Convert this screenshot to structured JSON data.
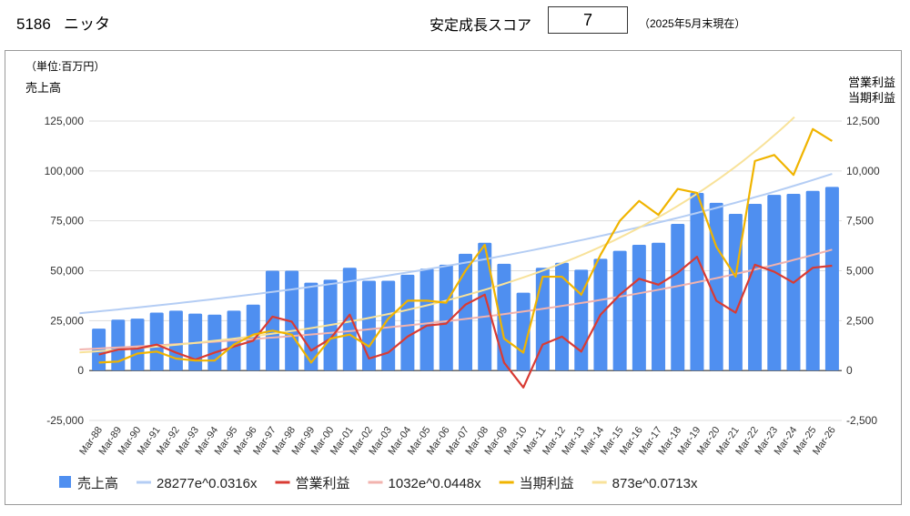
{
  "header": {
    "code": "5186",
    "name": "ニッタ",
    "score_label": "安定成長スコア",
    "score": "7",
    "as_of": "（2025年5月末現在）"
  },
  "chart_data": {
    "type": "bar",
    "unit_label": "（単位:百万円）",
    "ylabel_left": "売上高",
    "ylabel_right": [
      "営業利益",
      "当期利益"
    ],
    "ylim_left": [
      -25000,
      125000
    ],
    "ylim_right": [
      -2500,
      12500
    ],
    "yticks_left": [
      "-25,000",
      "0",
      "25,000",
      "50,000",
      "75,000",
      "100,000",
      "125,000"
    ],
    "yticks_right": [
      "-2,500",
      "0",
      "2,500",
      "5,000",
      "7,500",
      "10,000",
      "12,500"
    ],
    "grid": true,
    "legend_position": "bottom",
    "categories": [
      "Mar-88",
      "Mar-89",
      "Mar-90",
      "Mar-91",
      "Mar-92",
      "Mar-93",
      "Mar-94",
      "Mar-95",
      "Mar-96",
      "Mar-97",
      "Mar-98",
      "Mar-99",
      "Mar-00",
      "Mar-01",
      "Mar-02",
      "Mar-03",
      "Mar-04",
      "Mar-05",
      "Mar-06",
      "Mar-07",
      "Mar-08",
      "Mar-09",
      "Mar-10",
      "Mar-11",
      "Mar-12",
      "Mar-13",
      "Mar-14",
      "Mar-15",
      "Mar-16",
      "Mar-17",
      "Mar-18",
      "Mar-19",
      "Mar-20",
      "Mar-21",
      "Mar-22",
      "Mar-23",
      "Mar-24",
      "Mar-25",
      "Mar-26"
    ],
    "series": [
      {
        "name": "売上高",
        "type": "bar",
        "axis": "left",
        "color": "#4f8ff0",
        "values": [
          21000,
          25500,
          26000,
          29000,
          30000,
          28500,
          28000,
          30000,
          33000,
          50000,
          50000,
          44000,
          45500,
          51500,
          45000,
          45000,
          48000,
          51000,
          53000,
          58500,
          64000,
          53500,
          39000,
          51500,
          54000,
          50500,
          56000,
          60000,
          63000,
          64000,
          73500,
          89000,
          84000,
          78500,
          83500,
          88000,
          88500,
          90000,
          92000
        ]
      },
      {
        "name": "28277e^0.0316x",
        "type": "trend",
        "axis": "left",
        "color": "#b4cdf4",
        "a": 28277,
        "b": 0.0316
      },
      {
        "name": "営業利益",
        "type": "line",
        "axis": "right",
        "color": "#d93b33",
        "values": [
          800,
          1050,
          1100,
          1300,
          900,
          550,
          900,
          1200,
          1500,
          2700,
          2450,
          1000,
          1600,
          2800,
          600,
          900,
          1700,
          2250,
          2350,
          3300,
          3800,
          400,
          -850,
          1300,
          1700,
          950,
          2800,
          3800,
          4600,
          4300,
          4900,
          5700,
          3500,
          2900,
          5300,
          4950,
          4400,
          5150,
          5250
        ]
      },
      {
        "name": "1032e^0.0448x",
        "type": "trend",
        "axis": "right",
        "color": "#f2b3ae",
        "a": 1032,
        "b": 0.0448
      },
      {
        "name": "当期利益",
        "type": "line",
        "axis": "right",
        "color": "#f0b400",
        "values": [
          400,
          450,
          850,
          950,
          600,
          500,
          500,
          1300,
          1800,
          2000,
          1800,
          400,
          1600,
          1800,
          1200,
          2600,
          3500,
          3500,
          3400,
          5000,
          6300,
          1600,
          900,
          4700,
          4700,
          3800,
          5800,
          7500,
          8500,
          7800,
          9100,
          8900,
          6200,
          4700,
          10500,
          10800,
          9800,
          12100,
          11500
        ]
      },
      {
        "name": "873e^0.0713x",
        "type": "trend",
        "axis": "right",
        "color": "#f8e29a",
        "a": 873,
        "b": 0.0713
      }
    ]
  }
}
